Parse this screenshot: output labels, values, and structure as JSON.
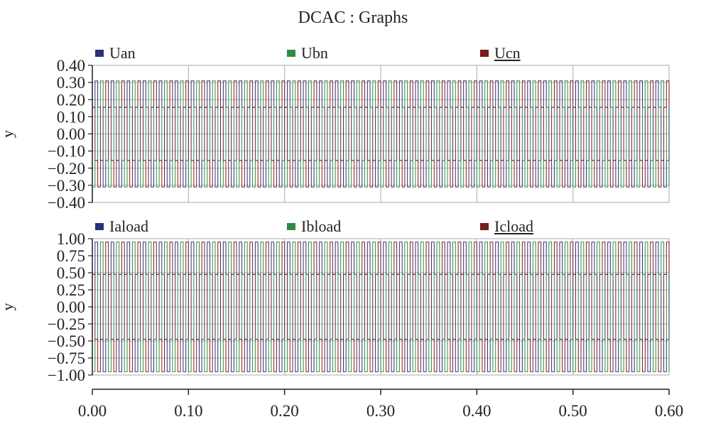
{
  "title": "DCAC : Graphs",
  "colors": {
    "Uan": "#2b2f7a",
    "Ubn": "#2e8b46",
    "Ucn": "#7a1c1c",
    "grid": "#b9b9b9",
    "axis": "#222222"
  },
  "chart_data": [
    {
      "type": "line",
      "ylabel": "y",
      "xlim": [
        0,
        0.6
      ],
      "ylim": [
        -0.4,
        0.4
      ],
      "yticks": [
        "0.40",
        "0.30",
        "0.20",
        "0.10",
        "0.00",
        "−0.10",
        "−0.20",
        "−0.30",
        "−0.40"
      ],
      "ytick_values": [
        0.4,
        0.3,
        0.2,
        0.1,
        0.0,
        -0.1,
        -0.2,
        -0.3,
        -0.4
      ],
      "grid": true,
      "waveform": "six-step",
      "series": [
        {
          "name": "Uan",
          "color": "#2b2f7a",
          "amplitude": 0.31,
          "phase_deg": 0,
          "underlined": false
        },
        {
          "name": "Ubn",
          "color": "#2e8b46",
          "amplitude": 0.31,
          "phase_deg": -120,
          "underlined": false
        },
        {
          "name": "Ucn",
          "color": "#7a1c1c",
          "amplitude": 0.31,
          "phase_deg": 120,
          "underlined": true
        }
      ]
    },
    {
      "type": "line",
      "ylabel": "y",
      "xlim": [
        0,
        0.6
      ],
      "ylim": [
        -1.0,
        1.0
      ],
      "yticks": [
        "1.00",
        "0.75",
        "0.50",
        "0.25",
        "0.00",
        "−0.25",
        "−0.50",
        "−0.75",
        "−1.00"
      ],
      "ytick_values": [
        1.0,
        0.75,
        0.5,
        0.25,
        0.0,
        -0.25,
        -0.5,
        -0.75,
        -1.0
      ],
      "grid": true,
      "waveform": "six-step",
      "series": [
        {
          "name": "Iaload",
          "color": "#2b2f7a",
          "amplitude": 0.95,
          "phase_deg": 0,
          "underlined": false
        },
        {
          "name": "Ibload",
          "color": "#2e8b46",
          "amplitude": 0.95,
          "phase_deg": -120,
          "underlined": false
        },
        {
          "name": "Icload",
          "color": "#7a1c1c",
          "amplitude": 0.95,
          "phase_deg": 120,
          "underlined": true
        }
      ]
    }
  ],
  "x_axis": {
    "ticks": [
      "0.00",
      "0.10",
      "0.20",
      "0.30",
      "0.40",
      "0.50",
      "0.60"
    ],
    "tick_values": [
      0.0,
      0.1,
      0.2,
      0.3,
      0.4,
      0.5,
      0.6
    ]
  },
  "signal_frequency_hz": 60
}
